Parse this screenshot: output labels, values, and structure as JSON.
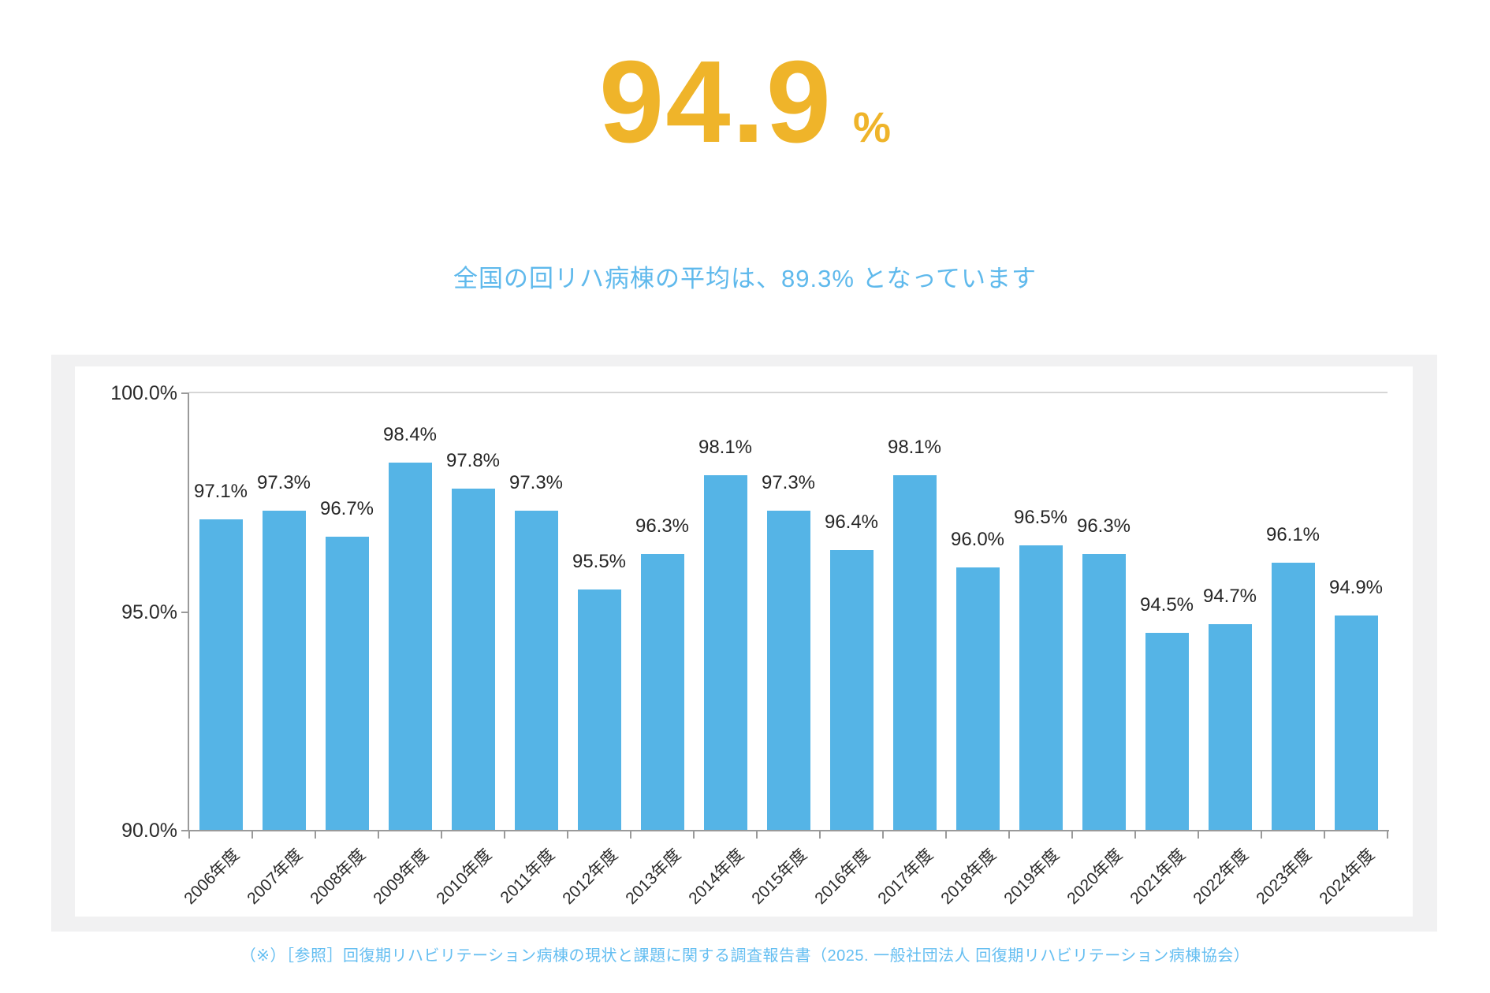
{
  "headline": {
    "value": "94.9",
    "unit": "%",
    "color": "#efb42a"
  },
  "subtitle": {
    "text": "全国の回リハ病棟の平均は、89.3% となっています",
    "color": "#5fb9ec"
  },
  "chart_data": {
    "type": "bar",
    "title": "",
    "xlabel": "",
    "ylabel": "",
    "categories": [
      "2006年度",
      "2007年度",
      "2008年度",
      "2009年度",
      "2010年度",
      "2011年度",
      "2012年度",
      "2013年度",
      "2014年度",
      "2015年度",
      "2016年度",
      "2017年度",
      "2018年度",
      "2019年度",
      "2020年度",
      "2021年度",
      "2022年度",
      "2023年度",
      "2024年度"
    ],
    "values": [
      97.1,
      97.3,
      96.7,
      98.4,
      97.8,
      97.3,
      95.5,
      96.3,
      98.1,
      97.3,
      96.4,
      98.1,
      96.0,
      96.5,
      96.3,
      94.5,
      94.7,
      96.1,
      94.9
    ],
    "value_suffix": "%",
    "ylim": [
      90,
      100
    ],
    "yticks": [
      100.0,
      95.0,
      90.0
    ],
    "ytick_labels": [
      "100.0%",
      "95.0%",
      "90.0%"
    ],
    "grid": "single horizontal gridline at 100%, legend none",
    "legend": null,
    "bar_color": "#55b4e6",
    "axis_color": "#9a9a9a",
    "gridline_color": "#d6d6d6"
  },
  "caption": {
    "text": "（※）［参照］回復期リハビリテーション病棟の現状と課題に関する調査報告書（2025. 一般社団法人 回復期リハビリテーション病棟協会）",
    "color": "#64bef1"
  }
}
